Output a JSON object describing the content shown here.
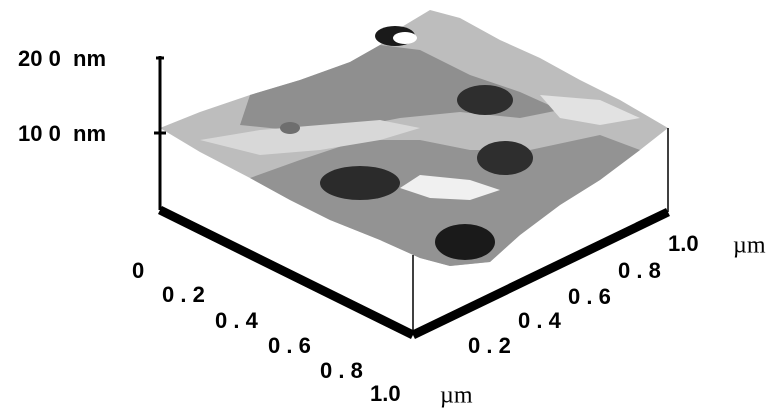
{
  "z_axis": {
    "labels": [
      "20 0  nm",
      "10 0  nm"
    ]
  },
  "x_axis": {
    "labels": [
      "0",
      "0 . 2",
      "0 . 4",
      "0 . 6",
      "0 . 8",
      "1.0"
    ],
    "unit": "µm"
  },
  "y_axis": {
    "labels": [
      "0 . 2",
      "0 . 4",
      "0 . 6",
      "0 . 8",
      "1.0"
    ],
    "unit": "µm"
  }
}
